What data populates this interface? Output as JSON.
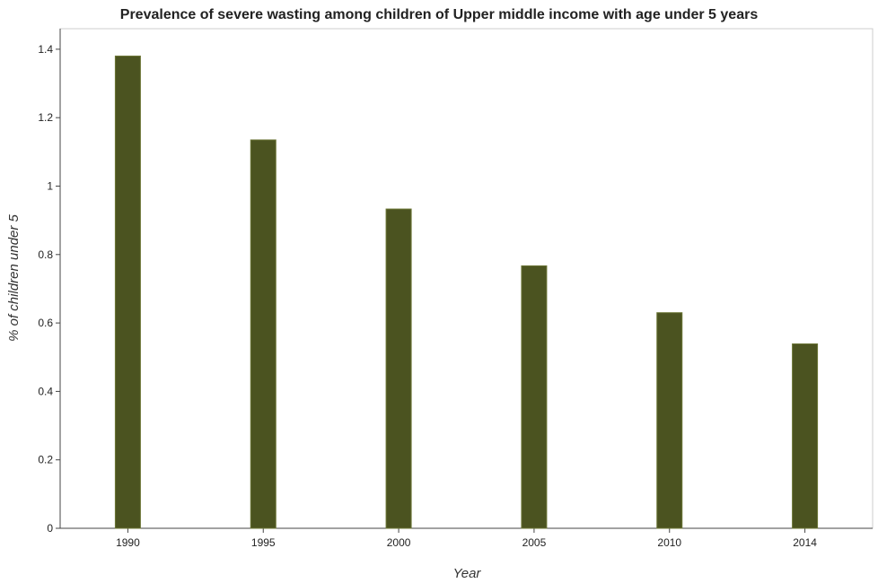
{
  "chart_data": {
    "type": "bar",
    "title": "Prevalence of severe wasting among children of Upper middle income with age under 5 years",
    "xlabel": "Year",
    "ylabel": "% of children under 5",
    "categories": [
      "1990",
      "1995",
      "2000",
      "2005",
      "2010",
      "2014"
    ],
    "series": [
      {
        "values": [
          1.38,
          1.135,
          0.933,
          0.767,
          0.63,
          0.539
        ]
      }
    ],
    "ylim": [
      0,
      1.46
    ],
    "yticks": [
      0,
      0.2,
      0.4,
      0.6,
      0.8,
      1,
      1.2,
      1.4
    ],
    "ytick_labels": [
      "0",
      "0.2",
      "0.4",
      "0.6",
      "0.8",
      "1",
      "1.2",
      "1.4"
    ],
    "grid": false,
    "bar_color": "#4b5320",
    "bar_edge_color": "#6b7535"
  }
}
